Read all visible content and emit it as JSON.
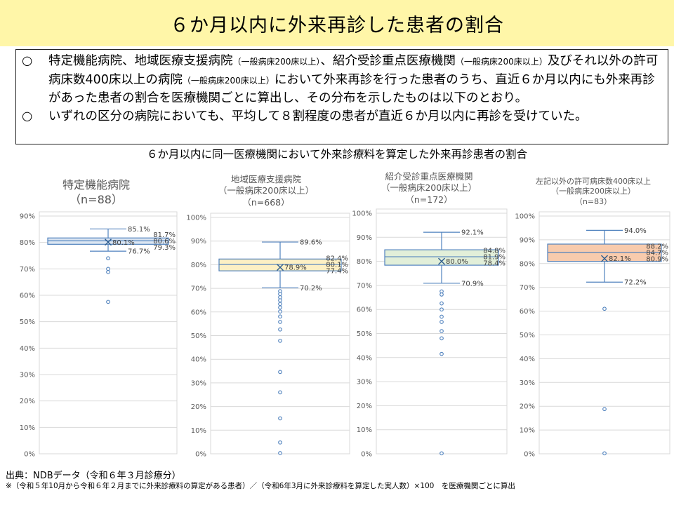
{
  "title": "６か月以内に外来再診した患者の割合",
  "summary": {
    "bullet_mark": "○",
    "bullet1_parts": [
      {
        "text": "特定機能病院、地域医療支援病院",
        "small": false
      },
      {
        "text": "（一般病床200床以上）",
        "small": true
      },
      {
        "text": "、紹介受診重点医療機関",
        "small": false
      },
      {
        "text": "（一般病床200床以上）",
        "small": true
      },
      {
        "text": "及びそれ以外の許可病床数400床以上の病院",
        "small": false
      },
      {
        "text": "（一般病床200床以上）",
        "small": true
      },
      {
        "text": "において外来再診を行った患者のうち、直近６か月以内にも外来再診があった患者の割合を医療機関ごとに算出し、その分布を示したものは以下のとおり。",
        "small": false
      }
    ],
    "bullet2": "いずれの区分の病院においても、平均して８割程度の患者が直近６か月以内に再診を受けていた。"
  },
  "chart_caption": "６か月以内に同一医療機関において外来診療料を算定した外来再診患者の割合",
  "colors": {
    "title_bg": "#fff6a8",
    "box_line": "#4f81bd",
    "marker": "#2e5d8e",
    "text_gray": "#555555",
    "grid": "#d9d9d9"
  },
  "chart_data": [
    {
      "type": "box",
      "title": "特定機能病院",
      "subtitle": "",
      "n_label": "（n=88）",
      "fill": "#dce6f2",
      "ylim": [
        0,
        90
      ],
      "yticks": [
        "0%",
        "10%",
        "20%",
        "30%",
        "40%",
        "50%",
        "60%",
        "70%",
        "80%",
        "90%"
      ],
      "whisker_high": 85.1,
      "q3": 81.7,
      "median": 80.6,
      "q1": 79.3,
      "whisker_low": 76.7,
      "mean": 80.1,
      "outliers": [
        74.0,
        70.0,
        68.8,
        57.5
      ],
      "labels": {
        "whisker_high": "85.1%",
        "q3": "81.7%",
        "median": "80.6%",
        "q1": "79.3%",
        "mean": "80.1%",
        "whisker_low": "76.7%"
      }
    },
    {
      "type": "box",
      "title": "地域医療支援病院",
      "subtitle": "（一般病床200床以上）",
      "n_label": "（n=668）",
      "fill": "#fdf0c4",
      "ylim": [
        0,
        100
      ],
      "yticks": [
        "0%",
        "10%",
        "20%",
        "30%",
        "40%",
        "50%",
        "60%",
        "70%",
        "80%",
        "90%",
        "100%"
      ],
      "whisker_high": 89.6,
      "q3": 82.4,
      "median": 80.1,
      "q1": 77.4,
      "whisker_low": 70.2,
      "mean": 78.9,
      "outliers": [
        68.8,
        67.6,
        66.2,
        64.9,
        63.4,
        61.9,
        60.2,
        58.1,
        55.8,
        52.6,
        47.8,
        34.6,
        26.0,
        15.0,
        4.8,
        0.3
      ],
      "labels": {
        "whisker_high": "89.6%",
        "q3": "82.4%",
        "median": "80.1%",
        "q1": "77.4%",
        "mean": "78.9%",
        "whisker_low": "70.2%"
      }
    },
    {
      "type": "box",
      "title": "紹介受診重点医療機関",
      "subtitle": "（一般病床200床以上）",
      "n_label": "（n=172）",
      "fill": "#e2efd9",
      "ylim": [
        0,
        100
      ],
      "yticks": [
        "0%",
        "10%",
        "20%",
        "30%",
        "40%",
        "50%",
        "60%",
        "70%",
        "80%",
        "90%",
        "100%"
      ],
      "whisker_high": 92.1,
      "q3": 84.8,
      "median": 81.9,
      "q1": 78.4,
      "whisker_low": 70.9,
      "mean": 80.0,
      "outliers": [
        67.5,
        66.2,
        62.5,
        60.0,
        57.0,
        54.8,
        51.0,
        48.0,
        41.5,
        0.2
      ],
      "labels": {
        "whisker_high": "92.1%",
        "q3": "84.8%",
        "median": "81.9%",
        "q1": "78.4%",
        "mean": "80.0%",
        "whisker_low": "70.9%"
      }
    },
    {
      "type": "box",
      "title": "左記以外の許可病床数400床以上",
      "subtitle": "（一般病床200床以上）",
      "n_label": "（n=83）",
      "fill": "#f8cbad",
      "ylim": [
        0,
        100
      ],
      "yticks": [
        "0%",
        "10%",
        "20%",
        "30%",
        "40%",
        "50%",
        "60%",
        "70%",
        "80%",
        "90%",
        "100%"
      ],
      "whisker_high": 94.0,
      "q3": 88.2,
      "median": 84.7,
      "q1": 80.9,
      "whisker_low": 72.2,
      "mean": 82.1,
      "outliers": [
        61.0,
        18.8,
        0.2
      ],
      "labels": {
        "whisker_high": "94.0%",
        "q3": "88.2%",
        "median": "84.7%",
        "q1": "80.9%",
        "mean": "82.1%",
        "whisker_low": "72.2%"
      }
    }
  ],
  "source": "出典：NDBデータ（令和６年３月診療分）",
  "note": "※（令和５年10月から令和６年２月までに外来診療料の算定がある患者）／（令和6年3月に外来診療料を算定した実人数）×100　を医療機関ごとに算出"
}
